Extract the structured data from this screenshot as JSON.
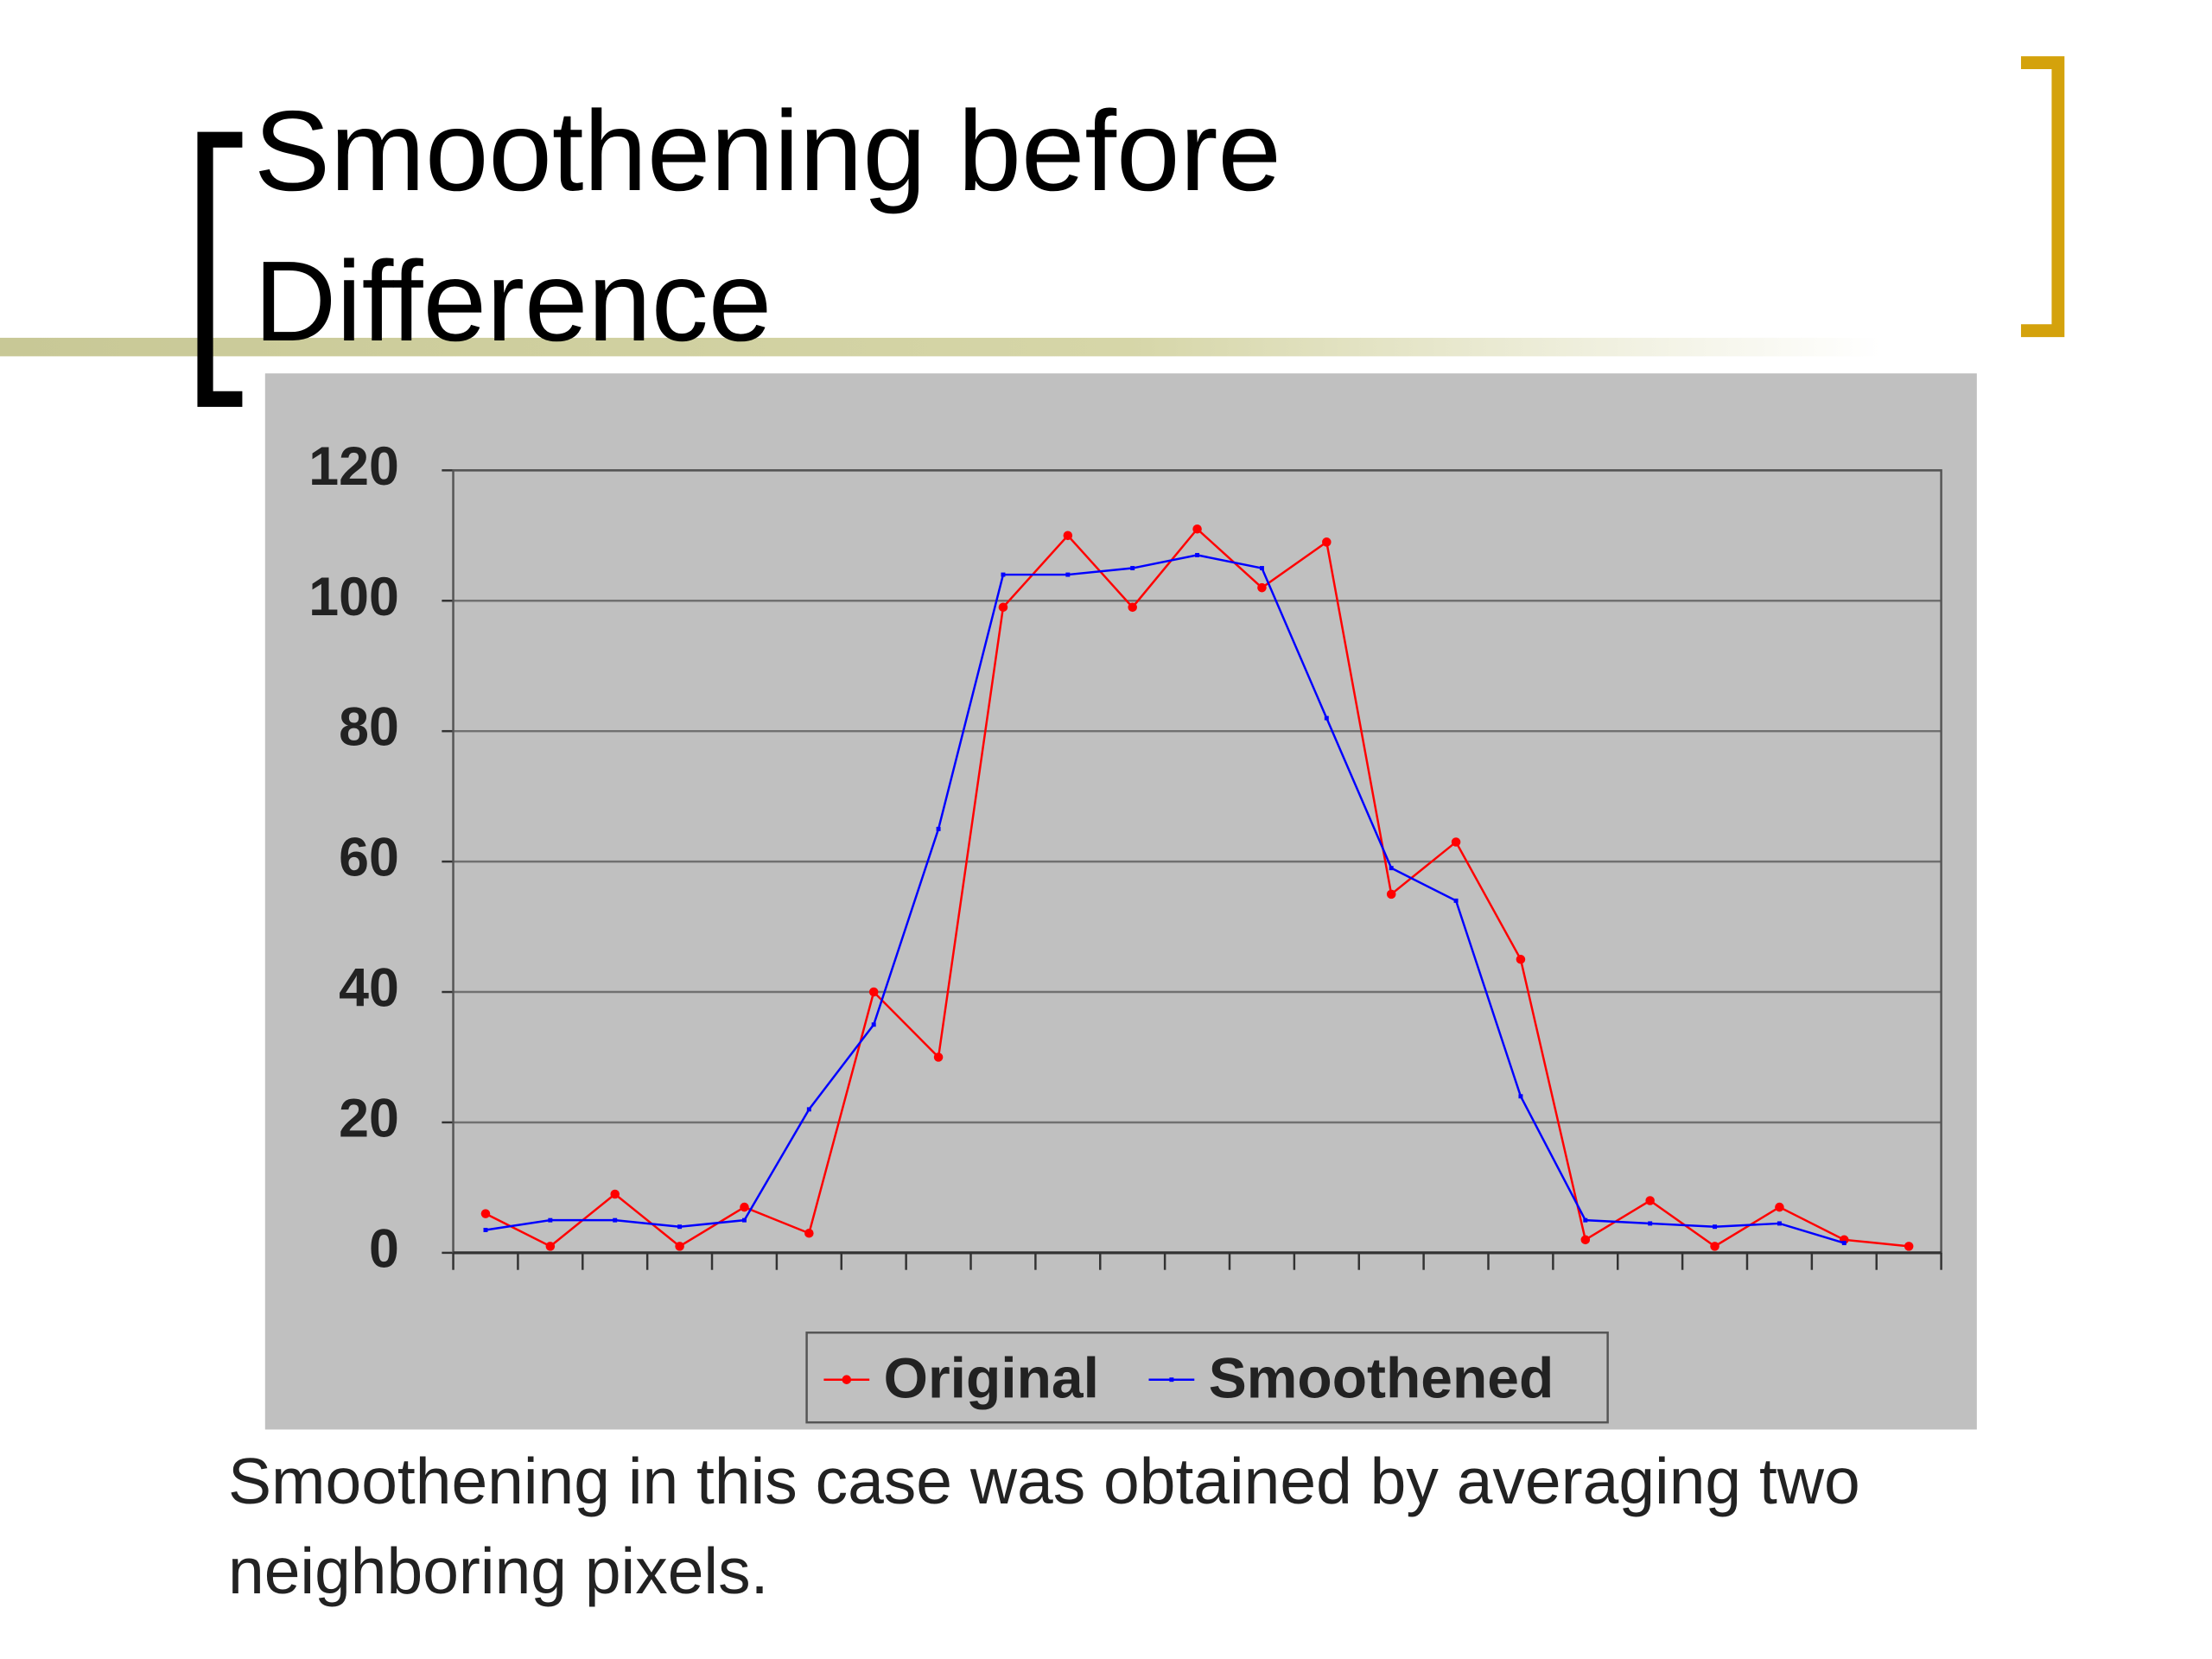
{
  "title": "Smoothening before Difference",
  "caption": "Smoothening in this case was obtained by averaging two neighboring pixels.",
  "chart_data": {
    "type": "line",
    "categories": [
      null,
      null,
      null,
      null,
      null,
      null,
      null,
      null,
      null,
      null,
      null,
      null,
      null,
      null,
      null,
      null,
      null,
      null,
      null,
      null,
      null,
      null,
      null
    ],
    "series": [
      {
        "name": "Original",
        "color": "#ff0000",
        "values": [
          6,
          1,
          9,
          1,
          7,
          3,
          40,
          30,
          99,
          110,
          99,
          111,
          102,
          109,
          55,
          63,
          45,
          2,
          8,
          1,
          7,
          2,
          1
        ]
      },
      {
        "name": "Smoothened",
        "color": "#0000ff",
        "values": [
          3.5,
          5,
          5,
          4,
          5,
          22,
          35,
          65,
          104,
          104,
          105,
          107,
          105,
          82,
          59,
          54,
          24,
          5,
          4.5,
          4,
          4.5,
          1.5,
          null
        ]
      }
    ],
    "ylim": [
      0,
      120
    ],
    "yticks": [
      0,
      20,
      40,
      60,
      80,
      100,
      120
    ],
    "grid": true,
    "legend": "bottom"
  }
}
